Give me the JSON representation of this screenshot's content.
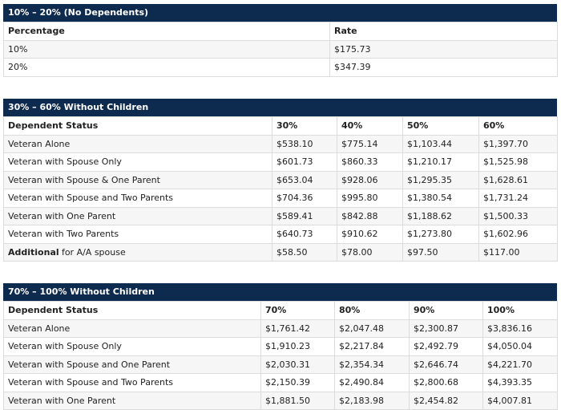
{
  "tables": [
    {
      "title": "10% – 20% (No Dependents)",
      "columns": [
        "Percentage",
        "Rate"
      ],
      "rows": [
        [
          "10%",
          "$175.73"
        ],
        [
          "20%",
          "$347.39"
        ]
      ]
    },
    {
      "title": "30% – 60% Without Children",
      "columns": [
        "Dependent Status",
        "30%",
        "40%",
        "50%",
        "60%"
      ],
      "rows": [
        [
          "Veteran Alone",
          "$538.10",
          "$775.14",
          "$1,103.44",
          "$1,397.70"
        ],
        [
          "Veteran with Spouse Only",
          "$601.73",
          "$860.33",
          "$1,210.17",
          "$1,525.98"
        ],
        [
          "Veteran with Spouse & One Parent",
          "$653.04",
          "$928.06",
          "$1,295.35",
          "$1,628.61"
        ],
        [
          "Veteran with Spouse and Two Parents",
          "$704.36",
          "$995.80",
          "$1,380.54",
          "$1,731.24"
        ],
        [
          "Veteran with One Parent",
          "$589.41",
          "$842.88",
          "$1,188.62",
          "$1,500.33"
        ],
        [
          "Veteran with Two Parents",
          "$640.73",
          "$910.62",
          "$1,273.80",
          "$1,602.96"
        ],
        [
          {
            "bold": "Additional",
            "text": "for A/A spouse"
          },
          "$58.50",
          "$78.00",
          "$97.50",
          "$117.00"
        ]
      ]
    },
    {
      "title": "70% – 100% Without Children",
      "columns": [
        "Dependent Status",
        "70%",
        "80%",
        "90%",
        "100%"
      ],
      "rows": [
        [
          "Veteran Alone",
          "$1,761.42",
          "$2,047.48",
          "$2,300.87",
          "$3,836.16"
        ],
        [
          "Veteran with Spouse Only",
          "$1,910.23",
          "$2,217.84",
          "$2,492.79",
          "$4,050.04"
        ],
        [
          "Veteran with Spouse and One Parent",
          "$2,030.31",
          "$2,354.34",
          "$2,646.74",
          "$4,221.70"
        ],
        [
          "Veteran with Spouse and Two Parents",
          "$2,150.39",
          "$2,490.84",
          "$2,800.68",
          "$4,393.35"
        ],
        [
          "Veteran with One Parent",
          "$1,881.50",
          "$2,183.98",
          "$2,454.82",
          "$4,007.81"
        ]
      ]
    }
  ]
}
